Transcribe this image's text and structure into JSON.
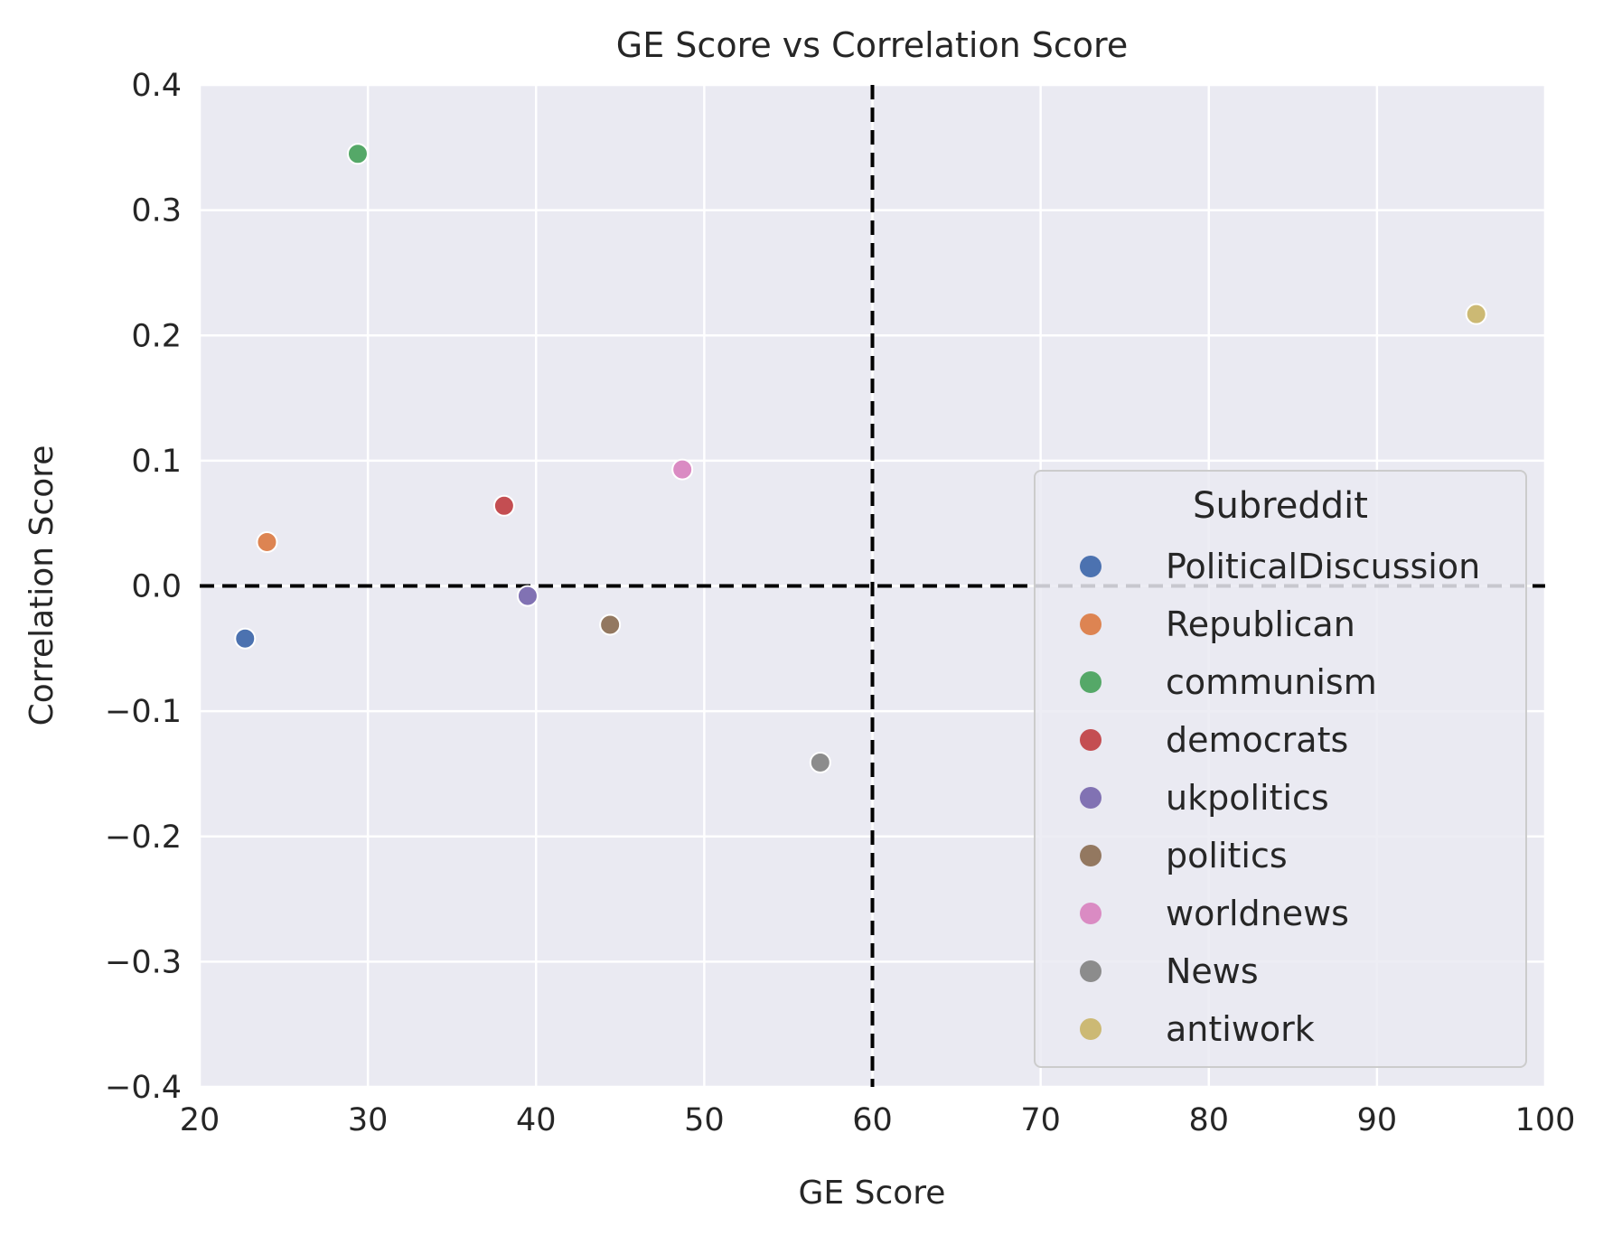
{
  "chart_data": {
    "type": "scatter",
    "title": "GE Score vs Correlation Score",
    "xlabel": "GE Score",
    "ylabel": "Correlation Score",
    "xlim": [
      20,
      100
    ],
    "ylim": [
      -0.4,
      0.4
    ],
    "x_ticks": [
      "20",
      "30",
      "40",
      "50",
      "60",
      "70",
      "80",
      "90",
      "100"
    ],
    "y_ticks": [
      "0.4",
      "0.3",
      "0.2",
      "0.1",
      "0.0",
      "−0.1",
      "−0.2",
      "−0.3",
      "−0.4"
    ],
    "grid": true,
    "reference_lines": {
      "x": 60,
      "y": 0
    },
    "legend": {
      "title": "Subreddit",
      "placement": "center-right"
    },
    "series": [
      {
        "name": "PoliticalDiscussion",
        "color": "#4c72b0",
        "x": 22.7,
        "y": -0.042
      },
      {
        "name": "Republican",
        "color": "#dd8452",
        "x": 24.0,
        "y": 0.035
      },
      {
        "name": "communism",
        "color": "#55a868",
        "x": 29.4,
        "y": 0.345
      },
      {
        "name": "democrats",
        "color": "#c44e52",
        "x": 38.1,
        "y": 0.064
      },
      {
        "name": "ukpolitics",
        "color": "#8172b3",
        "x": 39.5,
        "y": -0.008
      },
      {
        "name": "politics",
        "color": "#937860",
        "x": 44.4,
        "y": -0.031
      },
      {
        "name": "worldnews",
        "color": "#da8bc3",
        "x": 48.7,
        "y": 0.093
      },
      {
        "name": "News",
        "color": "#8c8c8c",
        "x": 56.9,
        "y": -0.141
      },
      {
        "name": "antiwork",
        "color": "#ccb974",
        "x": 95.9,
        "y": 0.217
      }
    ]
  }
}
